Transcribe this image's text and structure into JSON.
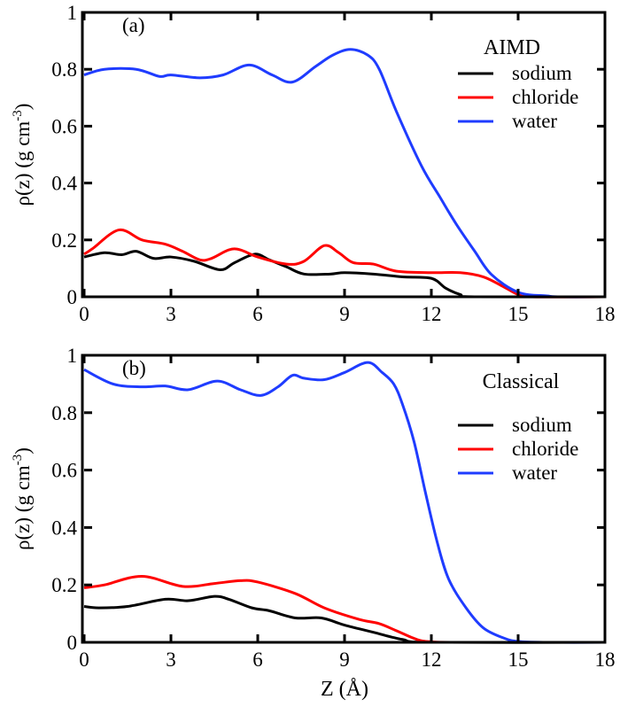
{
  "chart_data": [
    {
      "type": "line",
      "panel_label": "(a)",
      "legend_title": "AIMD",
      "legend_position": "top-right",
      "xlabel": "",
      "ylabel": "ρ(z) (g cm",
      "ylabel_sup": "-3",
      "ylabel_close": ")",
      "xlim": [
        0,
        18
      ],
      "ylim": [
        0,
        1
      ],
      "xticks": [
        "0",
        "3",
        "6",
        "9",
        "12",
        "15",
        "18"
      ],
      "yticks": [
        "0",
        "0.2",
        "0.4",
        "0.6",
        "0.8",
        "1"
      ],
      "series": [
        {
          "name": "sodium",
          "color": "#000000",
          "points": [
            [
              0,
              0.14
            ],
            [
              0.7,
              0.155
            ],
            [
              1.3,
              0.148
            ],
            [
              1.8,
              0.16
            ],
            [
              2.4,
              0.135
            ],
            [
              3,
              0.14
            ],
            [
              3.8,
              0.125
            ],
            [
              4.7,
              0.095
            ],
            [
              5.2,
              0.12
            ],
            [
              5.9,
              0.15
            ],
            [
              6.4,
              0.13
            ],
            [
              7,
              0.105
            ],
            [
              7.6,
              0.08
            ],
            [
              8.5,
              0.08
            ],
            [
              9,
              0.085
            ],
            [
              10,
              0.08
            ],
            [
              11,
              0.07
            ],
            [
              12,
              0.065
            ],
            [
              12.5,
              0.03
            ],
            [
              13,
              0.008
            ],
            [
              13.5,
              0
            ],
            [
              18,
              0
            ]
          ]
        },
        {
          "name": "chloride",
          "color": "#ff0000",
          "points": [
            [
              0,
              0.15
            ],
            [
              0.3,
              0.17
            ],
            [
              1.2,
              0.235
            ],
            [
              2,
              0.2
            ],
            [
              2.8,
              0.185
            ],
            [
              3.4,
              0.16
            ],
            [
              4,
              0.13
            ],
            [
              4.4,
              0.135
            ],
            [
              5,
              0.165
            ],
            [
              5.4,
              0.165
            ],
            [
              6,
              0.14
            ],
            [
              7,
              0.115
            ],
            [
              7.6,
              0.125
            ],
            [
              8.3,
              0.18
            ],
            [
              8.8,
              0.155
            ],
            [
              9.3,
              0.12
            ],
            [
              10,
              0.115
            ],
            [
              10.8,
              0.09
            ],
            [
              12,
              0.085
            ],
            [
              13,
              0.085
            ],
            [
              13.8,
              0.07
            ],
            [
              14.5,
              0.035
            ],
            [
              15,
              0.008
            ],
            [
              15.5,
              0
            ],
            [
              18,
              0
            ]
          ]
        },
        {
          "name": "water",
          "color": "#1f3cff",
          "points": [
            [
              0,
              0.78
            ],
            [
              0.7,
              0.8
            ],
            [
              1.8,
              0.8
            ],
            [
              2.6,
              0.775
            ],
            [
              3,
              0.78
            ],
            [
              4,
              0.77
            ],
            [
              4.8,
              0.78
            ],
            [
              5.7,
              0.815
            ],
            [
              6.5,
              0.78
            ],
            [
              7.2,
              0.755
            ],
            [
              8,
              0.81
            ],
            [
              8.6,
              0.85
            ],
            [
              9.2,
              0.87
            ],
            [
              9.8,
              0.85
            ],
            [
              10.2,
              0.8
            ],
            [
              10.8,
              0.65
            ],
            [
              11.66,
              0.46
            ],
            [
              12.3,
              0.35
            ],
            [
              12.87,
              0.254
            ],
            [
              13.5,
              0.16
            ],
            [
              14.08,
              0.078
            ],
            [
              15,
              0.016
            ],
            [
              16,
              0.003
            ],
            [
              16.5,
              0
            ],
            [
              18,
              0
            ]
          ]
        }
      ]
    },
    {
      "type": "line",
      "panel_label": "(b)",
      "legend_title": "Classical",
      "legend_position": "top-right",
      "xlabel": "Z (Å)",
      "ylabel": "ρ(z) (g cm",
      "ylabel_sup": "-3",
      "ylabel_close": ")",
      "xlim": [
        0,
        18
      ],
      "ylim": [
        0,
        1
      ],
      "xticks": [
        "0",
        "3",
        "6",
        "9",
        "12",
        "15",
        "18"
      ],
      "yticks": [
        "0",
        "0.2",
        "0.4",
        "0.6",
        "0.8",
        "1"
      ],
      "series": [
        {
          "name": "sodium",
          "color": "#000000",
          "points": [
            [
              0,
              0.125
            ],
            [
              0.5,
              0.12
            ],
            [
              1.5,
              0.125
            ],
            [
              2.8,
              0.15
            ],
            [
              3.6,
              0.145
            ],
            [
              4.5,
              0.16
            ],
            [
              5,
              0.15
            ],
            [
              5.8,
              0.12
            ],
            [
              6.4,
              0.11
            ],
            [
              7.3,
              0.085
            ],
            [
              8.2,
              0.085
            ],
            [
              9,
              0.06
            ],
            [
              10,
              0.035
            ],
            [
              11,
              0.01
            ],
            [
              12,
              0
            ],
            [
              18,
              0
            ]
          ]
        },
        {
          "name": "chloride",
          "color": "#ff0000",
          "points": [
            [
              0,
              0.19
            ],
            [
              0.7,
              0.2
            ],
            [
              2,
              0.23
            ],
            [
              3.4,
              0.195
            ],
            [
              4.5,
              0.205
            ],
            [
              5.4,
              0.215
            ],
            [
              6,
              0.21
            ],
            [
              7.3,
              0.17
            ],
            [
              8.3,
              0.12
            ],
            [
              9.5,
              0.08
            ],
            [
              10.2,
              0.065
            ],
            [
              10.8,
              0.04
            ],
            [
              11.5,
              0.01
            ],
            [
              12,
              0.002
            ],
            [
              13,
              0
            ],
            [
              18,
              0
            ]
          ]
        },
        {
          "name": "water",
          "color": "#1f3cff",
          "points": [
            [
              0,
              0.95
            ],
            [
              1,
              0.9
            ],
            [
              2,
              0.89
            ],
            [
              2.8,
              0.893
            ],
            [
              3.6,
              0.88
            ],
            [
              4.6,
              0.91
            ],
            [
              5.4,
              0.88
            ],
            [
              6.1,
              0.86
            ],
            [
              6.7,
              0.89
            ],
            [
              7.2,
              0.93
            ],
            [
              7.6,
              0.92
            ],
            [
              8.3,
              0.915
            ],
            [
              9,
              0.94
            ],
            [
              9.8,
              0.975
            ],
            [
              10.3,
              0.94
            ],
            [
              10.7,
              0.9
            ],
            [
              11,
              0.83
            ],
            [
              11.4,
              0.7
            ],
            [
              11.8,
              0.52
            ],
            [
              12.2,
              0.35
            ],
            [
              12.6,
              0.22
            ],
            [
              13.2,
              0.12
            ],
            [
              13.8,
              0.05
            ],
            [
              14.5,
              0.015
            ],
            [
              15,
              0.003
            ],
            [
              16,
              0
            ],
            [
              18,
              0
            ]
          ]
        }
      ]
    }
  ]
}
